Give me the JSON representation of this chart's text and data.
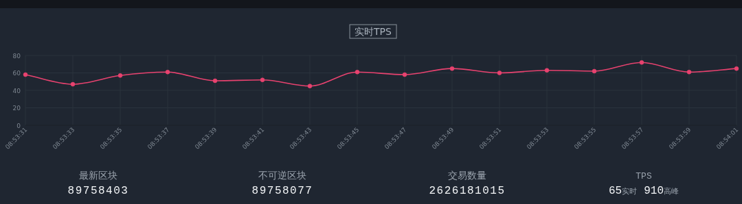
{
  "chart_data": [
    {
      "type": "line",
      "title": "实时TPS",
      "categories": [
        "08:53:31",
        "08:53:33",
        "08:53:35",
        "08:53:37",
        "08:53:39",
        "08:53:41",
        "08:53:43",
        "08:53:45",
        "08:53:47",
        "08:53:49",
        "08:53:51",
        "08:53:53",
        "08:53:55",
        "08:53:57",
        "08:53:59",
        "08:54:01"
      ],
      "series": [
        {
          "color": "#e8426f",
          "values": [
            58,
            47,
            57,
            61,
            51,
            52,
            45,
            61,
            58,
            65,
            60,
            63,
            62,
            72,
            61,
            65
          ]
        }
      ],
      "ylim": [
        0,
        80
      ],
      "yticks": [
        0,
        20,
        40,
        60,
        80
      ],
      "grid": true,
      "marker": "circle",
      "line_style": "solid"
    },
    {
      "type": "other",
      "annotations": [
        "最新区块",
        "89758403",
        "不可逆区块",
        "89758077",
        "交易数量",
        "2626181015",
        "TPS",
        "65",
        "实时",
        "910",
        "高峰"
      ]
    }
  ]
}
